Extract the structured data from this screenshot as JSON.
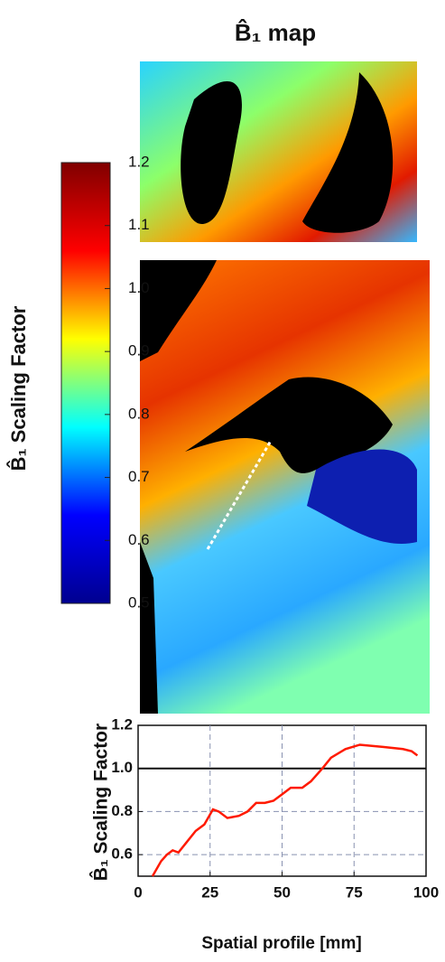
{
  "title": "B̂₁ map",
  "chart_data": [
    {
      "type": "colorbar",
      "label": "B̂₁ Scaling Factor",
      "clim": [
        0.5,
        1.2
      ],
      "colors": [
        "#00008f",
        "#0000ff",
        "#00ffff",
        "#ffff00",
        "#ff0000",
        "#800000"
      ],
      "ticks": [
        0.5,
        0.6,
        0.7,
        0.8,
        0.9,
        {
          "value": 1.0,
          "label": "1.0"
        },
        1.1,
        1.2
      ]
    },
    {
      "type": "line",
      "xlabel": "Spatial profile [mm]",
      "ylabel": "B̂₁ Scaling Factor",
      "xlim": [
        0,
        100
      ],
      "ylim": [
        0.5,
        1.2
      ],
      "xticks": [
        0,
        25,
        50,
        75,
        100
      ],
      "yticks": [
        0.6,
        0.8,
        {
          "value": 1.0,
          "label": "1.0"
        },
        1.2
      ],
      "grid": true,
      "hline": 1.0,
      "series": [
        {
          "color": "#ff1a00",
          "x": [
            5,
            8,
            10,
            12,
            14,
            17,
            20,
            23,
            26,
            28,
            31,
            35,
            38,
            41,
            44,
            47,
            50,
            53,
            57,
            60,
            64,
            67,
            72,
            77,
            85,
            92,
            95,
            97
          ],
          "values": [
            0.5,
            0.57,
            0.6,
            0.62,
            0.61,
            0.66,
            0.71,
            0.74,
            0.81,
            0.8,
            0.77,
            0.78,
            0.8,
            0.84,
            0.84,
            0.85,
            0.88,
            0.91,
            0.91,
            0.94,
            1.0,
            1.05,
            1.09,
            1.11,
            1.1,
            1.09,
            1.08,
            1.06
          ]
        }
      ]
    }
  ]
}
